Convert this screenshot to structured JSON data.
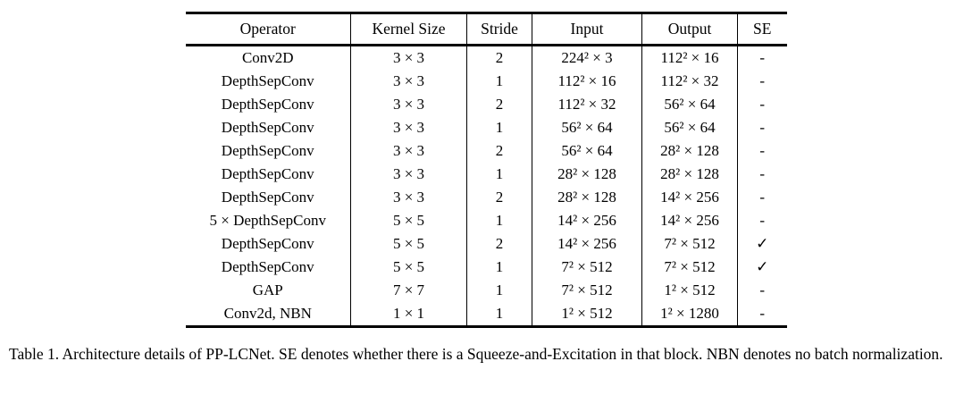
{
  "colors": {
    "text": "#000000",
    "rule": "#000000",
    "background": "#ffffff"
  },
  "table": {
    "headers": [
      "Operator",
      "Kernel Size",
      "Stride",
      "Input",
      "Output",
      "SE"
    ],
    "rows": [
      [
        "Conv2D",
        "3 × 3",
        "2",
        "224² × 3",
        "112² × 16",
        "-"
      ],
      [
        "DepthSepConv",
        "3 × 3",
        "1",
        "112² × 16",
        "112² × 32",
        "-"
      ],
      [
        "DepthSepConv",
        "3 × 3",
        "2",
        "112² × 32",
        "56² × 64",
        "-"
      ],
      [
        "DepthSepConv",
        "3 × 3",
        "1",
        "56² × 64",
        "56² × 64",
        "-"
      ],
      [
        "DepthSepConv",
        "3 × 3",
        "2",
        "56² × 64",
        "28² × 128",
        "-"
      ],
      [
        "DepthSepConv",
        "3 × 3",
        "1",
        "28² × 128",
        "28² × 128",
        "-"
      ],
      [
        "DepthSepConv",
        "3 × 3",
        "2",
        "28² × 128",
        "14² × 256",
        "-"
      ],
      [
        "5 × DepthSepConv",
        "5 × 5",
        "1",
        "14² × 256",
        "14² × 256",
        "-"
      ],
      [
        "DepthSepConv",
        "5 × 5",
        "2",
        "14² × 256",
        "7² × 512",
        "✓"
      ],
      [
        "DepthSepConv",
        "5 × 5",
        "1",
        "7² × 512",
        "7² × 512",
        "✓"
      ],
      [
        "GAP",
        "7 × 7",
        "1",
        "7² × 512",
        "1² × 512",
        "-"
      ],
      [
        "Conv2d, NBN",
        "1 × 1",
        "1",
        "1² × 512",
        "1² × 1280",
        "-"
      ]
    ],
    "checkmark_glyph": "✓"
  },
  "caption": {
    "text": "Table 1. Architecture details of PP-LCNet. SE denotes whether there is a Squeeze-and-Excitation in that block. NBN denotes no batch normalization."
  }
}
